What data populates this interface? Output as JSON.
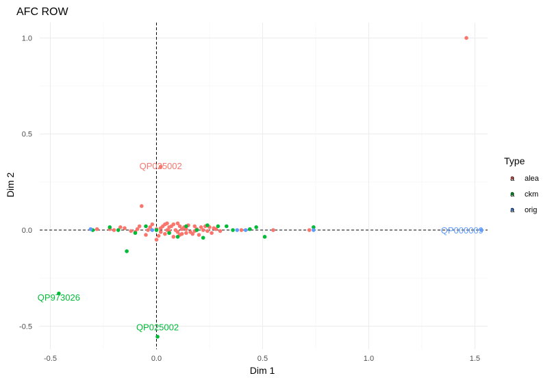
{
  "chart_data": {
    "type": "scatter",
    "title": "AFC ROW",
    "xlabel": "Dim 1",
    "ylabel": "Dim 2",
    "xlim": [
      -0.55,
      1.56
    ],
    "ylim": [
      -0.62,
      1.08
    ],
    "x_ticks": [
      -0.5,
      0.0,
      0.5,
      1.0,
      1.5
    ],
    "x_tick_labels": [
      "-0.5",
      "0.0",
      "0.5",
      "1.0",
      "1.5"
    ],
    "y_ticks": [
      -0.5,
      0.0,
      0.5,
      1.0
    ],
    "y_tick_labels": [
      "-0.5",
      "0.0",
      "0.5",
      "1.0"
    ],
    "grid": true,
    "reference_lines": {
      "x": 0,
      "y": 0
    },
    "legend": {
      "title": "Type",
      "position": "right",
      "glyph": "a",
      "entries": [
        {
          "label": "alea",
          "color": "#f8766d"
        },
        {
          "label": "ckm",
          "color": "#00ba38"
        },
        {
          "label": "orig",
          "color": "#619cff"
        }
      ]
    },
    "series": [
      {
        "name": "alea",
        "color": "#f8766d",
        "points": [
          [
            1.46,
            1.0
          ],
          [
            0.02,
            0.33
          ],
          [
            -0.07,
            0.125
          ],
          [
            0.55,
            0.0
          ],
          [
            0.72,
            0.0
          ],
          [
            0.25,
            0.015
          ],
          [
            0.3,
            -0.005
          ],
          [
            0.18,
            0.02
          ],
          [
            -0.1,
            -0.01
          ],
          [
            -0.02,
            0.03
          ],
          [
            -0.28,
            0.005
          ],
          [
            0.1,
            0.035
          ],
          [
            0.05,
            0.035
          ],
          [
            0.12,
            -0.02
          ],
          [
            0.2,
            -0.025
          ],
          [
            0.08,
            -0.035
          ],
          [
            0.0,
            -0.05
          ],
          [
            -0.04,
            0.0
          ],
          [
            0.02,
            0.01
          ],
          [
            0.06,
            -0.005
          ],
          [
            0.14,
            0.005
          ],
          [
            0.22,
            0.0
          ],
          [
            -0.2,
            0.0
          ],
          [
            -0.15,
            0.01
          ],
          [
            0.04,
            -0.02
          ],
          [
            0.16,
            -0.01
          ],
          [
            0.26,
            -0.015
          ],
          [
            -0.08,
            0.02
          ],
          [
            0.11,
            0.02
          ],
          [
            0.09,
            0.0
          ],
          [
            -0.12,
            -0.005
          ],
          [
            0.03,
            0.02
          ],
          [
            0.07,
            0.02
          ],
          [
            0.13,
            0.015
          ],
          [
            0.19,
            0.005
          ],
          [
            0.28,
            0.005
          ],
          [
            -0.05,
            -0.025
          ],
          [
            0.01,
            -0.03
          ],
          [
            0.17,
            -0.02
          ],
          [
            0.24,
            -0.005
          ],
          [
            0.4,
            0.0
          ],
          [
            -0.17,
            0.015
          ],
          [
            0.0,
            0.005
          ],
          [
            0.05,
            0.0
          ],
          [
            0.1,
            -0.01
          ],
          [
            0.15,
            0.025
          ],
          [
            0.21,
            0.015
          ],
          [
            -0.03,
            0.015
          ],
          [
            0.08,
            0.03
          ],
          [
            0.12,
            0.005
          ],
          [
            0.18,
            -0.005
          ],
          [
            0.23,
            0.02
          ],
          [
            -0.09,
            0.005
          ],
          [
            0.02,
            -0.01
          ],
          [
            0.06,
            0.015
          ],
          [
            0.14,
            -0.015
          ],
          [
            0.27,
            0.01
          ],
          [
            -0.22,
            0.005
          ],
          [
            0.04,
            0.03
          ],
          [
            0.11,
            -0.025
          ]
        ]
      },
      {
        "name": "ckm",
        "color": "#00ba38",
        "points": [
          [
            0.005,
            -0.555
          ],
          [
            -0.46,
            -0.33
          ],
          [
            -0.14,
            -0.11
          ],
          [
            0.51,
            -0.035
          ],
          [
            0.74,
            0.015
          ],
          [
            0.47,
            0.015
          ],
          [
            0.33,
            0.02
          ],
          [
            0.44,
            0.005
          ],
          [
            -0.3,
            0.0
          ],
          [
            -0.22,
            0.015
          ],
          [
            0.29,
            0.02
          ],
          [
            0.24,
            0.025
          ],
          [
            -0.05,
            0.02
          ],
          [
            0.1,
            -0.035
          ],
          [
            -0.18,
            0.0
          ],
          [
            0.22,
            -0.04
          ],
          [
            0.0,
            0.0
          ],
          [
            0.14,
            0.02
          ],
          [
            -0.1,
            -0.015
          ],
          [
            0.36,
            0.0
          ],
          [
            0.19,
            0.0
          ],
          [
            0.06,
            -0.015
          ]
        ]
      },
      {
        "name": "orig",
        "color": "#619cff",
        "points": [
          [
            1.53,
            0.0
          ],
          [
            -0.31,
            0.005
          ],
          [
            0.42,
            0.0
          ],
          [
            0.38,
            0.0
          ],
          [
            0.74,
            0.0
          ],
          [
            -0.02,
            0.0
          ]
        ]
      }
    ],
    "annotations": [
      {
        "text": "QP025002",
        "x": 0.02,
        "y": 0.335,
        "series": "alea"
      },
      {
        "text": "QP000009",
        "x": 1.44,
        "y": 0.0,
        "series": "orig"
      },
      {
        "text": "QP973026",
        "x": -0.46,
        "y": -0.35,
        "series": "ckm"
      },
      {
        "text": "QP025002",
        "x": 0.005,
        "y": -0.505,
        "series": "ckm"
      }
    ]
  }
}
